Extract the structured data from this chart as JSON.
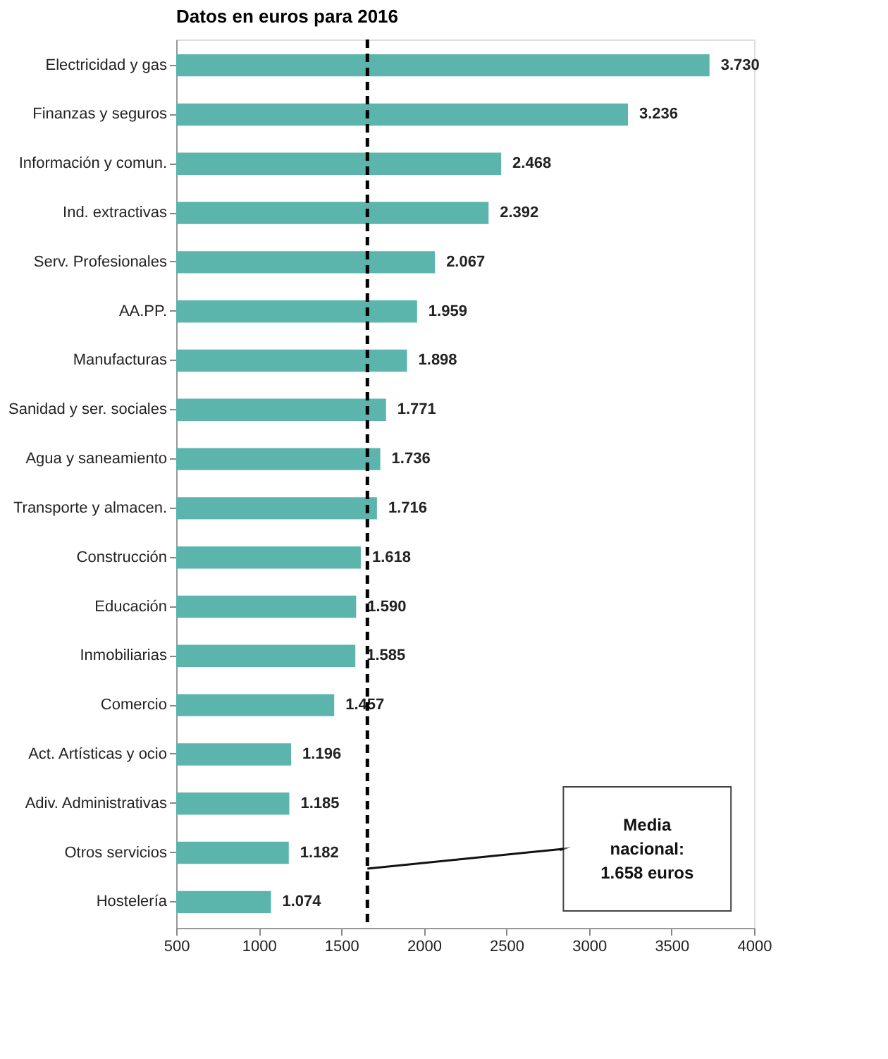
{
  "chart_data": {
    "type": "bar",
    "orientation": "horizontal",
    "title": "Datos en euros para 2016",
    "categories": [
      "Electricidad y gas",
      "Finanzas y seguros",
      "Información y comun.",
      "Ind. extractivas",
      "Serv. Profesionales",
      "AA.PP.",
      "Manufacturas",
      "Sanidad y ser. sociales",
      "Agua y saneamiento",
      "Transporte y almacen.",
      "Construcción",
      "Educación",
      "Inmobiliarias",
      "Comercio",
      "Act. Artísticas y ocio",
      "Adiv. Administrativas",
      "Otros servicios",
      "Hostelería"
    ],
    "values": [
      3730,
      3236,
      2468,
      2392,
      2067,
      1959,
      1898,
      1771,
      1736,
      1716,
      1618,
      1590,
      1585,
      1457,
      1196,
      1185,
      1182,
      1074
    ],
    "value_labels": [
      "3.730",
      "3.236",
      "2.468",
      "2.392",
      "2.067",
      "1.959",
      "1.898",
      "1.771",
      "1.736",
      "1.716",
      "1.618",
      "1.590",
      "1.585",
      "1.457",
      "1.196",
      "1.185",
      "1.182",
      "1.074"
    ],
    "color": "#5bb5ac",
    "xlim": [
      500,
      4000
    ],
    "xticks": [
      500,
      1000,
      1500,
      2000,
      2500,
      3000,
      3500,
      4000
    ],
    "grid": false,
    "ref_lines": [
      {
        "axis": "x",
        "value": 1658,
        "label": "Media\nnacional:\n1.658 euros",
        "color": "#000000",
        "line_style": "dashed"
      }
    ]
  }
}
